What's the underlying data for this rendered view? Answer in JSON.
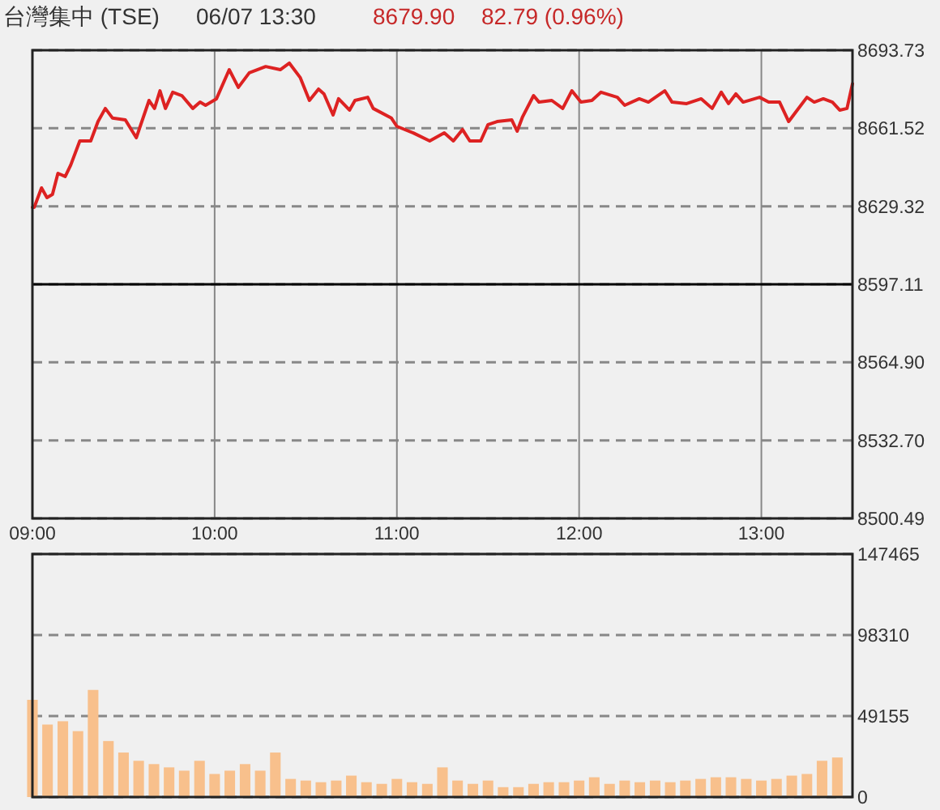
{
  "chart_data": [
    {
      "type": "line",
      "title": "台灣集中 (TSE)",
      "annotations": [
        "06/07 13:30",
        "8679.90",
        "82.79 (0.96%)"
      ],
      "xlim": [
        9,
        13.5
      ],
      "xticks": [
        {
          "value": 9,
          "label": "09:00"
        },
        {
          "value": 10,
          "label": "10:00"
        },
        {
          "value": 11,
          "label": "11:00"
        },
        {
          "value": 12,
          "label": "12:00"
        },
        {
          "value": 13,
          "label": "13:00"
        }
      ],
      "ylim": [
        8500.49,
        8693.73
      ],
      "yticks": [
        8500.49,
        {
          "value": 8532.7,
          "label": "8532.70"
        },
        {
          "value": 8564.9,
          "label": "8564.90"
        },
        8597.11,
        8629.32,
        8661.52,
        8693.73
      ],
      "grid": true,
      "ref_lines": [
        {
          "axis": "y",
          "value": 8597.11,
          "color": "#000000"
        }
      ],
      "series": [
        {
          "color": "#dd2222",
          "x": [
            9.0,
            9.01,
            9.05,
            9.08,
            9.11,
            9.14,
            9.18,
            9.21,
            9.26,
            9.32,
            9.36,
            9.4,
            9.44,
            9.51,
            9.57,
            9.64,
            9.67,
            9.7,
            9.73,
            9.77,
            9.82,
            9.88,
            9.92,
            9.95,
            10.01,
            10.08,
            10.13,
            10.19,
            10.28,
            10.36,
            10.41,
            10.47,
            10.52,
            10.57,
            10.6,
            10.65,
            10.68,
            10.74,
            10.77,
            10.84,
            10.87,
            10.97,
            11.0,
            11.09,
            11.18,
            11.26,
            11.31,
            11.36,
            11.4,
            11.46,
            11.5,
            11.55,
            11.63,
            11.66,
            11.69,
            11.75,
            11.78,
            11.85,
            11.91,
            11.96,
            12.01,
            12.07,
            12.12,
            12.21,
            12.25,
            12.33,
            12.38,
            12.47,
            12.51,
            12.59,
            12.67,
            12.73,
            12.78,
            12.82,
            12.86,
            12.9,
            12.99,
            13.04,
            13.1,
            13.15,
            13.19,
            13.25,
            13.29,
            13.34,
            13.39,
            13.43,
            13.47,
            13.5
          ],
          "values": [
            8628.9,
            8628.9,
            8636.9,
            8632.9,
            8634.2,
            8642.9,
            8641.6,
            8646.3,
            8656.3,
            8656.3,
            8664.3,
            8669.7,
            8665.7,
            8665.0,
            8657.6,
            8673.0,
            8669.7,
            8677.0,
            8669.7,
            8676.4,
            8675.0,
            8669.7,
            8672.3,
            8671.0,
            8673.7,
            8685.7,
            8678.4,
            8684.4,
            8687.0,
            8685.7,
            8688.4,
            8682.4,
            8673.0,
            8677.7,
            8675.7,
            8667.0,
            8673.7,
            8669.0,
            8673.0,
            8674.3,
            8669.7,
            8665.7,
            8662.3,
            8659.6,
            8656.3,
            8659.6,
            8656.3,
            8661.0,
            8656.3,
            8656.3,
            8663.0,
            8664.3,
            8665.0,
            8660.3,
            8666.3,
            8675.0,
            8672.3,
            8673.0,
            8669.7,
            8677.0,
            8672.3,
            8673.0,
            8676.4,
            8674.3,
            8671.0,
            8673.7,
            8672.3,
            8677.0,
            8672.3,
            8671.7,
            8673.7,
            8669.7,
            8676.4,
            8671.7,
            8675.7,
            8672.3,
            8674.3,
            8672.3,
            8672.3,
            8664.3,
            8668.3,
            8674.3,
            8672.3,
            8673.7,
            8672.3,
            8669.0,
            8669.7,
            8679.9
          ]
        }
      ]
    },
    {
      "type": "bar",
      "xlim": [
        9,
        13.5
      ],
      "tick_labels": "y",
      "ylim": [
        0,
        147465
      ],
      "yticks": [
        0,
        49155,
        98310,
        147465
      ],
      "grid": "y",
      "series": [
        {
          "color": "#f8c08c",
          "x": [
            9.0,
            9.083,
            9.167,
            9.25,
            9.333,
            9.417,
            9.5,
            9.583,
            9.667,
            9.75,
            9.833,
            9.917,
            10.0,
            10.083,
            10.167,
            10.25,
            10.333,
            10.417,
            10.5,
            10.583,
            10.667,
            10.75,
            10.833,
            10.917,
            11.0,
            11.083,
            11.167,
            11.25,
            11.333,
            11.417,
            11.5,
            11.583,
            11.667,
            11.75,
            11.833,
            11.917,
            12.0,
            12.083,
            12.167,
            12.25,
            12.333,
            12.417,
            12.5,
            12.583,
            12.667,
            12.75,
            12.833,
            12.917,
            13.0,
            13.083,
            13.167,
            13.25,
            13.333,
            13.417
          ],
          "values": [
            59000,
            44000,
            46000,
            40000,
            65000,
            34000,
            27000,
            22000,
            20000,
            18000,
            16000,
            22000,
            14000,
            16000,
            20000,
            16000,
            27000,
            11000,
            10000,
            9000,
            10000,
            13000,
            9000,
            8000,
            11000,
            9000,
            8000,
            18000,
            10000,
            8000,
            10000,
            6000,
            6000,
            8000,
            9000,
            9000,
            10000,
            12000,
            8000,
            10000,
            9000,
            10000,
            9000,
            10000,
            11000,
            12000,
            12000,
            11000,
            10000,
            11000,
            13000,
            14000,
            22000,
            24000
          ]
        }
      ]
    }
  ]
}
